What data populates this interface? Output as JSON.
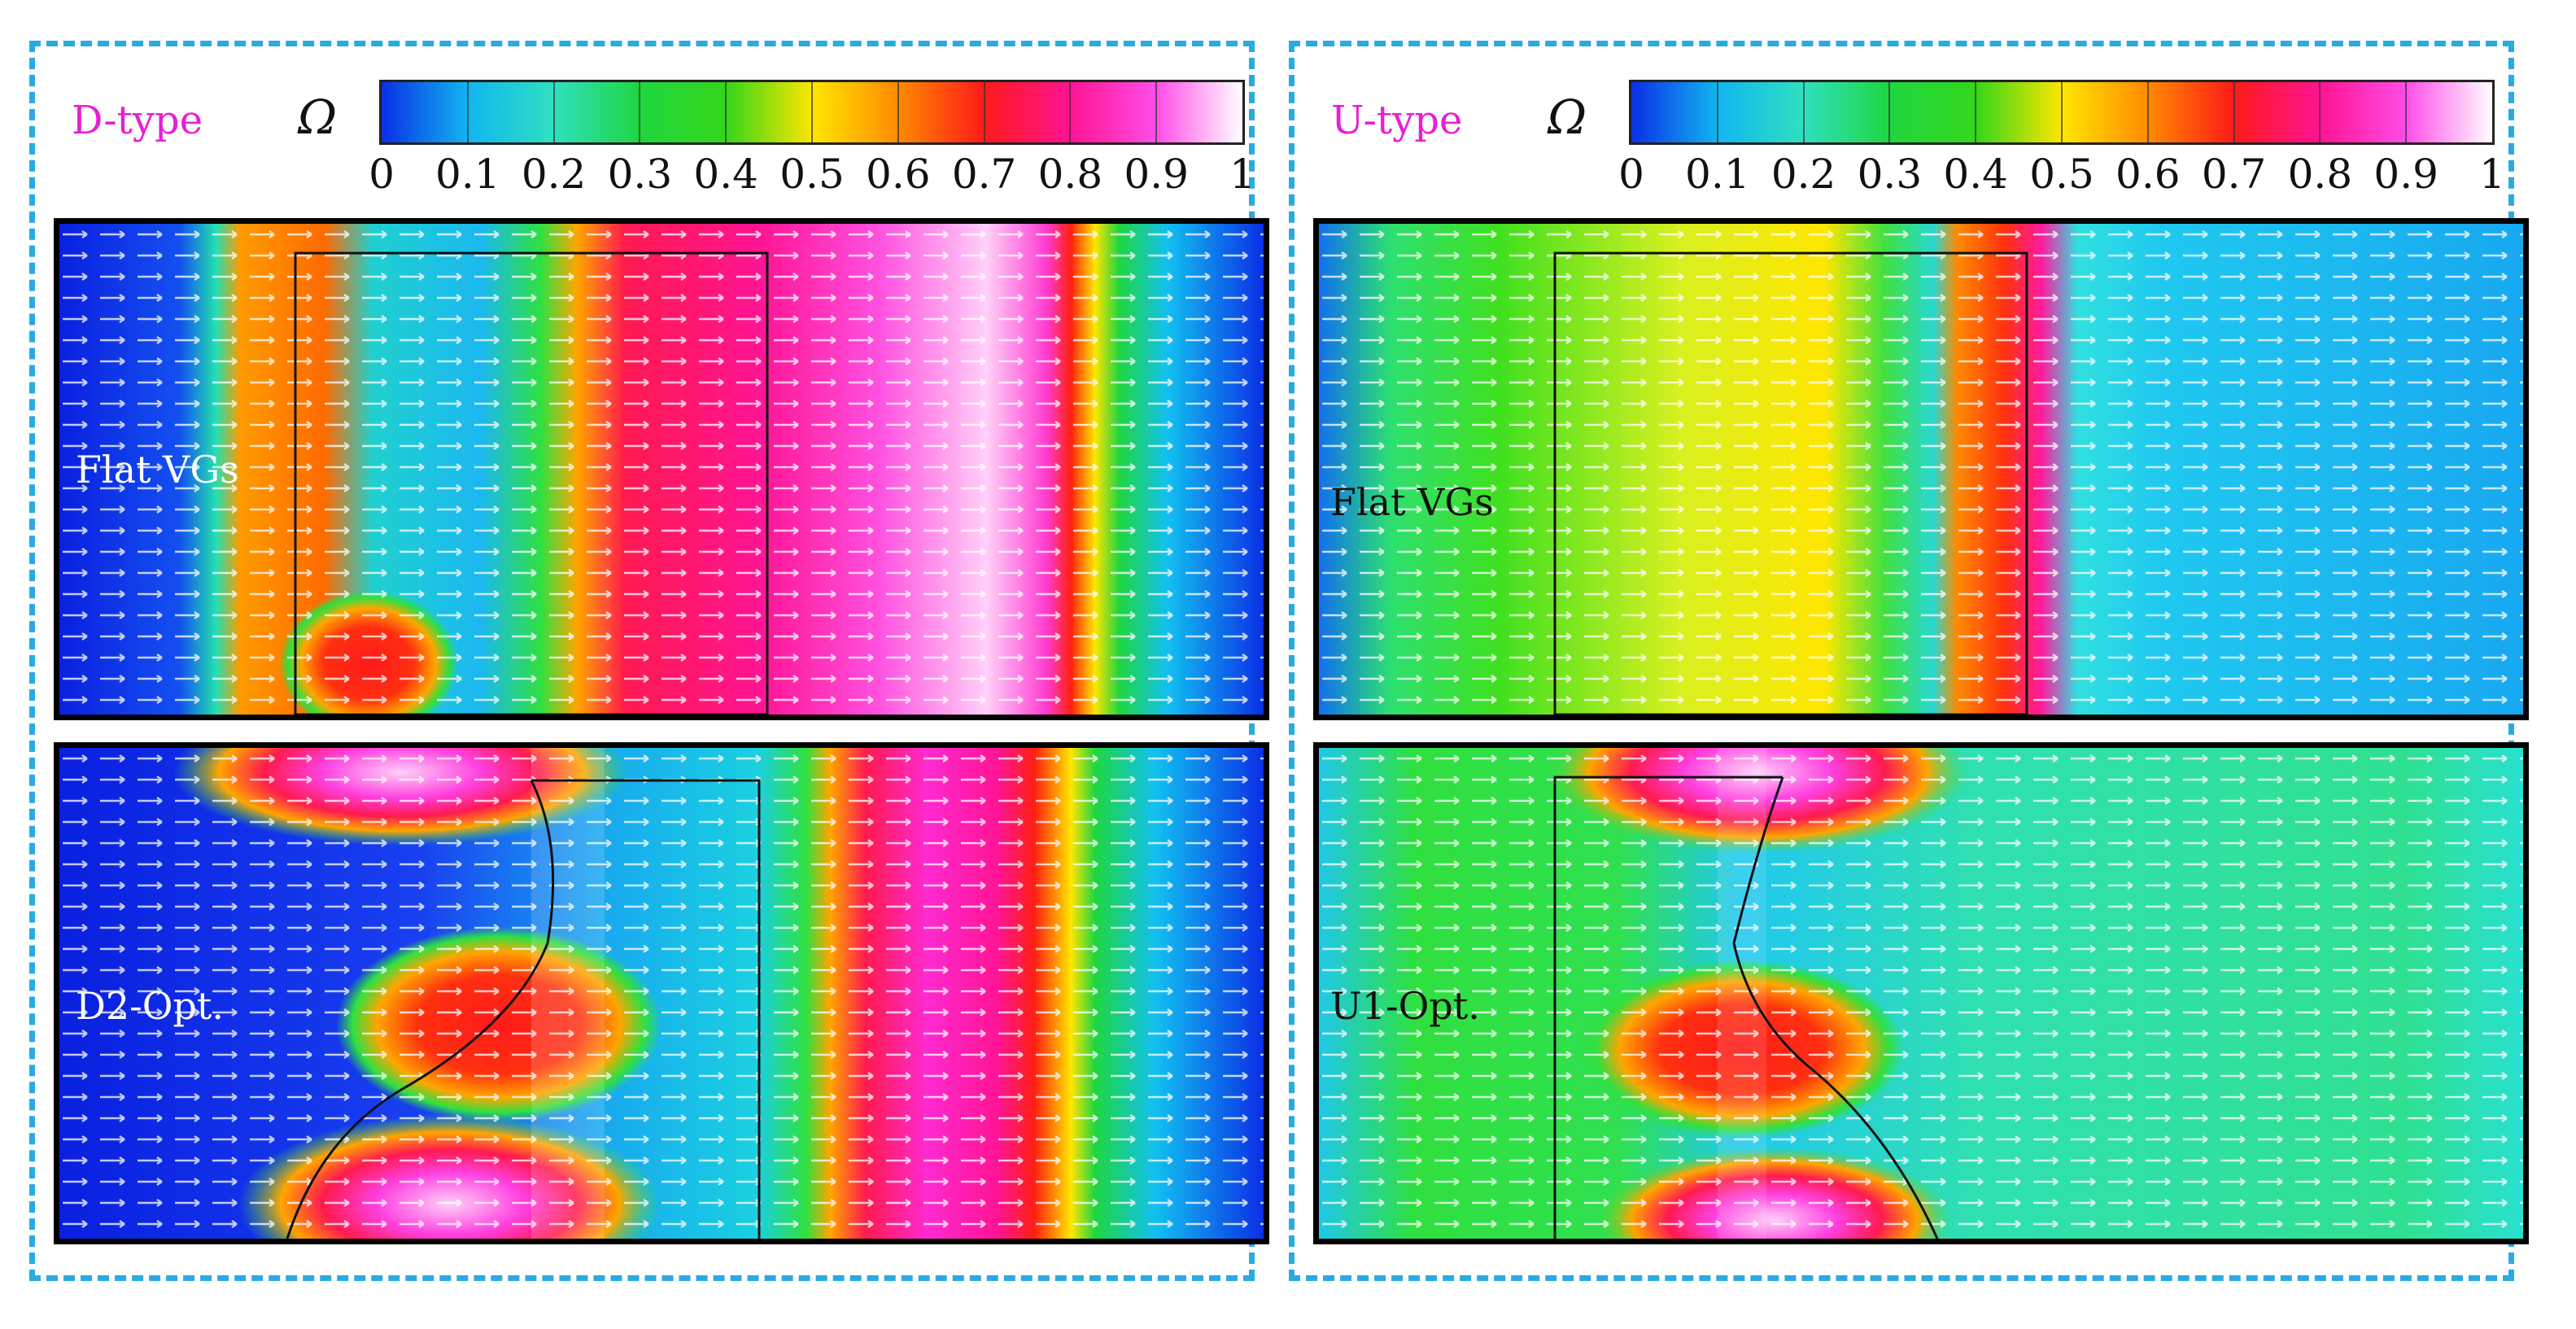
{
  "left": {
    "type_label": "D-type",
    "colorbar_symbol": "Ω",
    "top_panel_label": "Flat VGs",
    "bottom_panel_label": "D2-Opt."
  },
  "right": {
    "type_label": "U-type",
    "colorbar_symbol": "Ω",
    "top_panel_label": "Flat VGs",
    "bottom_panel_label": "U1-Opt."
  },
  "colorbar": {
    "ticks": [
      "0",
      "0.1",
      "0.2",
      "0.3",
      "0.4",
      "0.5",
      "0.6",
      "0.7",
      "0.8",
      "0.9",
      "1"
    ],
    "colors": [
      "#0a2fe6",
      "#12b5f0",
      "#2fe0c0",
      "#1fd640",
      "#9be816",
      "#ffe600",
      "#ff8a00",
      "#ff1a1a",
      "#ff1493",
      "#ff4de8",
      "#ffffff"
    ]
  },
  "colors": {
    "dashed_frame": "#29abe2",
    "type_label": "#e81ed4"
  }
}
